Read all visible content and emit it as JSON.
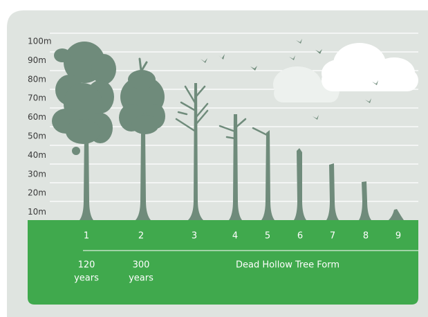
{
  "height_labels": [
    "100m",
    "90m",
    "80m",
    "70m",
    "60m",
    "50m",
    "40m",
    "30m",
    "20m",
    "10m"
  ],
  "tree_numbers": [
    "1",
    "2",
    "3",
    "4",
    "5",
    "6",
    "7",
    "8",
    "9"
  ],
  "age_labels": [
    [
      "120",
      "years"
    ],
    [
      "300",
      "years"
    ]
  ],
  "caption": "Dead Hollow Tree Form"
}
